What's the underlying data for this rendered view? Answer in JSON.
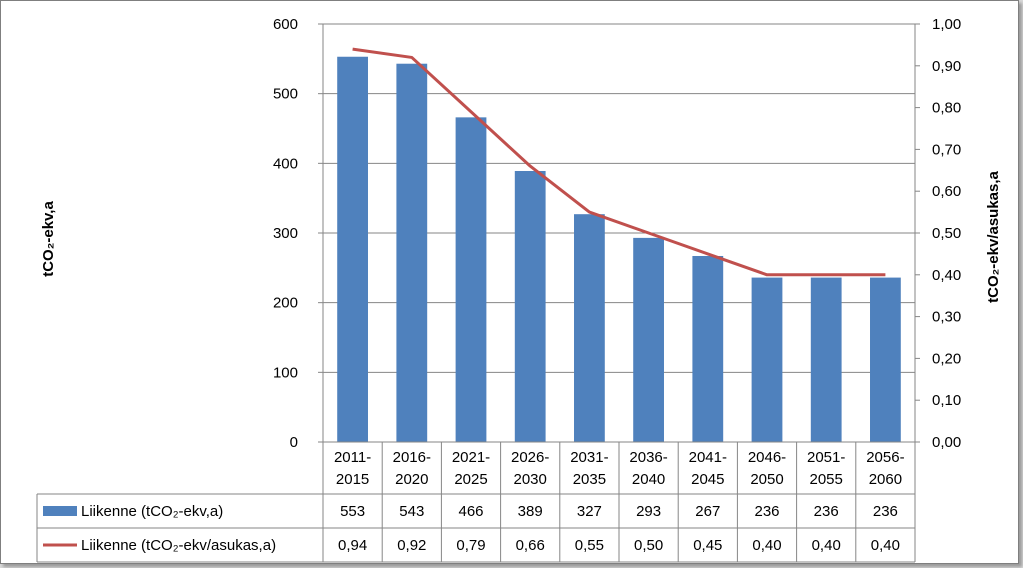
{
  "chart_data": {
    "type": "bar",
    "categories": [
      [
        "2011-",
        "2015"
      ],
      [
        "2016-",
        "2020"
      ],
      [
        "2021-",
        "2025"
      ],
      [
        "2026-",
        "2030"
      ],
      [
        "2031-",
        "2035"
      ],
      [
        "2036-",
        "2040"
      ],
      [
        "2041-",
        "2045"
      ],
      [
        "2046-",
        "2050"
      ],
      [
        "2051-",
        "2055"
      ],
      [
        "2056-",
        "2060"
      ]
    ],
    "series": [
      {
        "name": "Liikenne (tCO₂-ekv,a)",
        "kind": "bar",
        "axis": "left",
        "color": "#4f81bd",
        "values": [
          553,
          543,
          466,
          389,
          327,
          293,
          267,
          236,
          236,
          236
        ],
        "table_values": [
          "553",
          "543",
          "466",
          "389",
          "327",
          "293",
          "267",
          "236",
          "236",
          "236"
        ]
      },
      {
        "name": "Liikenne (tCO₂-ekv/asukas,a)",
        "kind": "line",
        "axis": "right",
        "color": "#c0504d",
        "values": [
          0.94,
          0.92,
          0.79,
          0.66,
          0.55,
          0.5,
          0.45,
          0.4,
          0.4,
          0.4
        ],
        "table_values": [
          "0,94",
          "0,92",
          "0,79",
          "0,66",
          "0,55",
          "0,50",
          "0,45",
          "0,40",
          "0,40",
          "0,40"
        ]
      }
    ],
    "ylabel": "tCO₂-ekv,a",
    "ylabel_right": "tCO₂-ekv/asukas,a",
    "ylim": [
      0,
      600
    ],
    "ylim_right": [
      0,
      1.0
    ],
    "y_ticks": [
      "0",
      "100",
      "200",
      "300",
      "400",
      "500",
      "600"
    ],
    "y_ticks_right": [
      "0,00",
      "0,10",
      "0,20",
      "0,30",
      "0,40",
      "0,50",
      "0,60",
      "0,70",
      "0,80",
      "0,90",
      "1,00"
    ],
    "grid": true,
    "legend": "data-table-below"
  }
}
